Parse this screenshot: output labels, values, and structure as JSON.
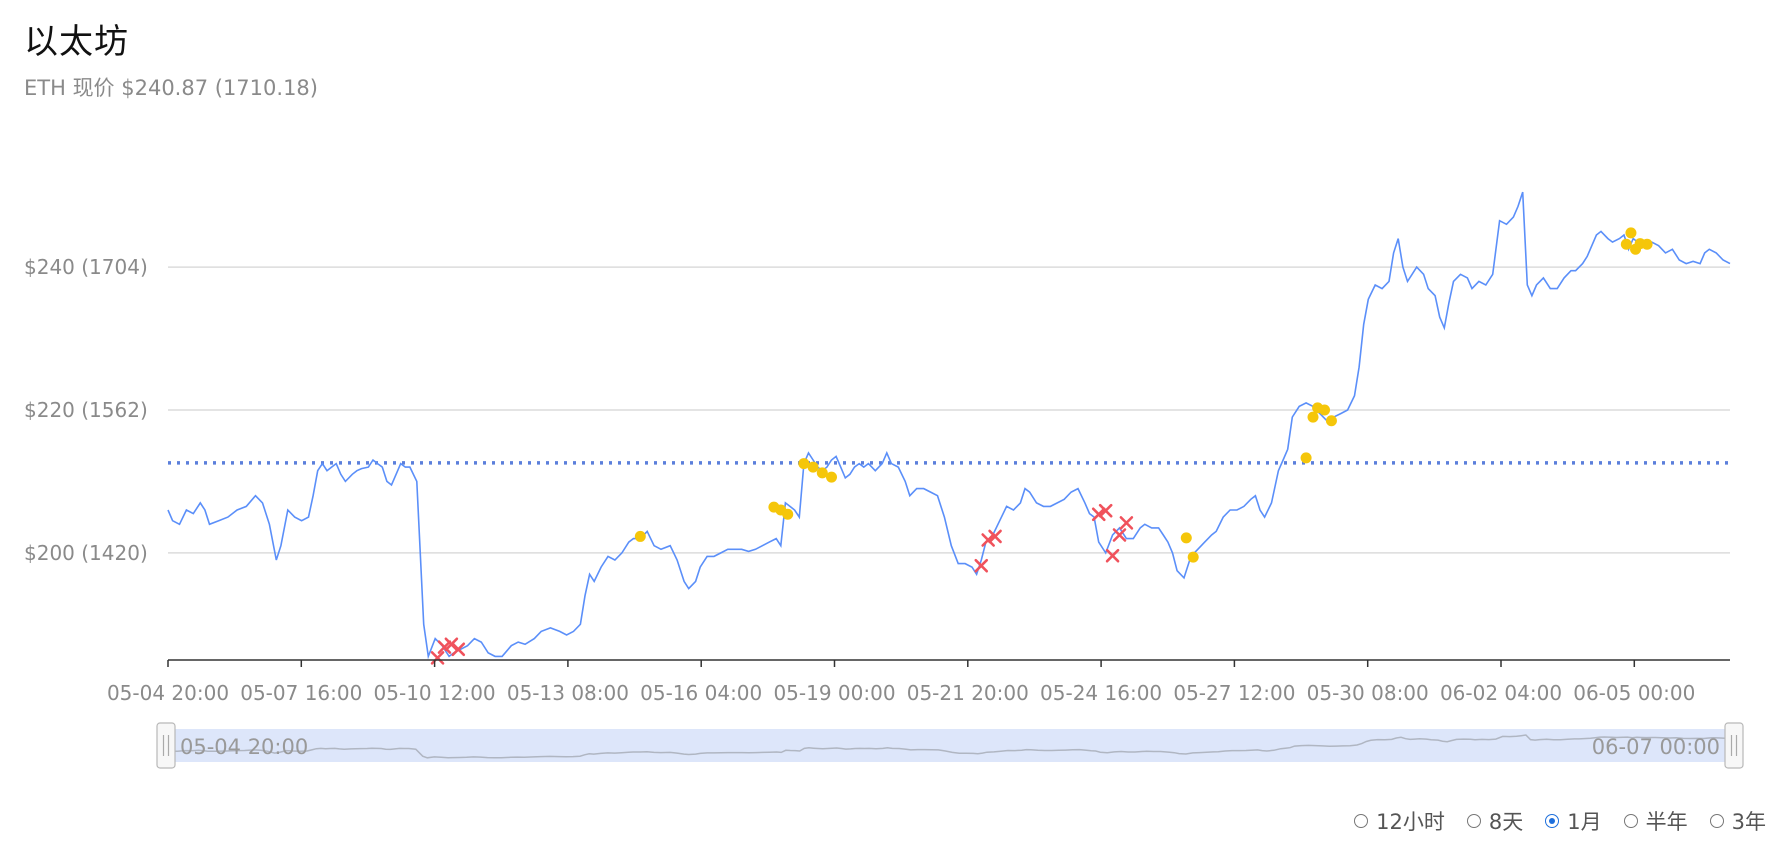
{
  "header": {
    "title": "以太坊",
    "subtitle": "ETH 现价 $240.87 (1710.18)"
  },
  "colors": {
    "line": "#5b8ff9",
    "reference": "#5b7fdb",
    "buy": "#f5c60a",
    "sell": "#f0525c",
    "grid": "#dcdcdc",
    "slider_fill": "#dde6fa"
  },
  "range_selector": {
    "options": [
      "12小时",
      "8天",
      "1月",
      "半年",
      "3年"
    ],
    "selected": "1月"
  },
  "slider": {
    "start_label": "05-04 20:00",
    "end_label": "06-07 00:00"
  },
  "chart_data": {
    "type": "line",
    "title": "",
    "xlabel": "",
    "ylabel": "",
    "x_unit": "days since 05-04 20:00",
    "ylim": [
      185,
      262
    ],
    "x_range": [
      0,
      33.9
    ],
    "y_ticks": [
      {
        "value": 200,
        "label": "$200 (1420)"
      },
      {
        "value": 220,
        "label": "$220 (1562)"
      },
      {
        "value": 240,
        "label": "$240 (1704)"
      }
    ],
    "x_ticks": [
      "05-04 20:00",
      "05-07 16:00",
      "05-10 12:00",
      "05-13 08:00",
      "05-16 04:00",
      "05-19 00:00",
      "05-21 20:00",
      "05-24 16:00",
      "05-27 12:00",
      "05-30 08:00",
      "06-02 04:00",
      "06-05 00:00"
    ],
    "reference_line": 212.6,
    "series": [
      {
        "points": [
          [
            0,
            206
          ],
          [
            0.1,
            204.5
          ],
          [
            0.25,
            204
          ],
          [
            0.4,
            206
          ],
          [
            0.55,
            205.5
          ],
          [
            0.7,
            207
          ],
          [
            0.8,
            206
          ],
          [
            0.9,
            204
          ],
          [
            1.1,
            204.5
          ],
          [
            1.3,
            205
          ],
          [
            1.5,
            206
          ],
          [
            1.7,
            206.5
          ],
          [
            1.9,
            208
          ],
          [
            2.05,
            207
          ],
          [
            2.2,
            204
          ],
          [
            2.35,
            199
          ],
          [
            2.45,
            201
          ],
          [
            2.6,
            206
          ],
          [
            2.75,
            205
          ],
          [
            2.9,
            204.5
          ],
          [
            3.05,
            205
          ],
          [
            3.15,
            208
          ],
          [
            3.25,
            211.5
          ],
          [
            3.35,
            212.5
          ],
          [
            3.45,
            211.5
          ],
          [
            3.55,
            212
          ],
          [
            3.65,
            212.5
          ],
          [
            3.75,
            211
          ],
          [
            3.85,
            210
          ],
          [
            4.0,
            211
          ],
          [
            4.1,
            211.5
          ],
          [
            4.2,
            211.8
          ],
          [
            4.35,
            212
          ],
          [
            4.45,
            213
          ],
          [
            4.55,
            212.5
          ],
          [
            4.65,
            212
          ],
          [
            4.75,
            210
          ],
          [
            4.85,
            209.5
          ],
          [
            4.95,
            211
          ],
          [
            5.05,
            212.5
          ],
          [
            5.15,
            212
          ],
          [
            5.25,
            212
          ],
          [
            5.4,
            210
          ],
          [
            5.55,
            190
          ],
          [
            5.65,
            185.5
          ],
          [
            5.8,
            188
          ],
          [
            5.95,
            187
          ],
          [
            6.1,
            185.5
          ],
          [
            6.2,
            186
          ],
          [
            6.35,
            186.5
          ],
          [
            6.5,
            187
          ],
          [
            6.65,
            188
          ],
          [
            6.8,
            187.5
          ],
          [
            6.95,
            186
          ],
          [
            7.1,
            185.5
          ],
          [
            7.25,
            185.5
          ],
          [
            7.45,
            187
          ],
          [
            7.6,
            187.5
          ],
          [
            7.75,
            187.2
          ],
          [
            7.95,
            188
          ],
          [
            8.1,
            189
          ],
          [
            8.3,
            189.5
          ],
          [
            8.5,
            189
          ],
          [
            8.65,
            188.5
          ],
          [
            8.8,
            189
          ],
          [
            8.95,
            190
          ],
          [
            9.05,
            194
          ],
          [
            9.15,
            197
          ],
          [
            9.25,
            196
          ],
          [
            9.4,
            198
          ],
          [
            9.55,
            199.5
          ],
          [
            9.7,
            199
          ],
          [
            9.85,
            200
          ],
          [
            10.0,
            201.5
          ],
          [
            10.1,
            202
          ],
          [
            10.25,
            202
          ],
          [
            10.4,
            203
          ],
          [
            10.55,
            201
          ],
          [
            10.7,
            200.5
          ],
          [
            10.9,
            201
          ],
          [
            11.05,
            199
          ],
          [
            11.2,
            196
          ],
          [
            11.3,
            195
          ],
          [
            11.45,
            196
          ],
          [
            11.55,
            198
          ],
          [
            11.7,
            199.5
          ],
          [
            11.85,
            199.5
          ],
          [
            12.0,
            200
          ],
          [
            12.15,
            200.5
          ],
          [
            12.3,
            200.5
          ],
          [
            12.45,
            200.5
          ],
          [
            12.6,
            200.2
          ],
          [
            12.75,
            200.5
          ],
          [
            12.9,
            201
          ],
          [
            13.05,
            201.5
          ],
          [
            13.2,
            202
          ],
          [
            13.3,
            201
          ],
          [
            13.4,
            207
          ],
          [
            13.5,
            206.5
          ],
          [
            13.6,
            206
          ],
          [
            13.7,
            205
          ],
          [
            13.8,
            212.5
          ],
          [
            13.9,
            214
          ],
          [
            14.0,
            213
          ],
          [
            14.1,
            212
          ],
          [
            14.2,
            211.5
          ],
          [
            14.3,
            212
          ],
          [
            14.4,
            213
          ],
          [
            14.5,
            213.5
          ],
          [
            14.6,
            212
          ],
          [
            14.7,
            210.5
          ],
          [
            14.8,
            211
          ],
          [
            14.9,
            212
          ],
          [
            15.0,
            212.5
          ],
          [
            15.1,
            212
          ],
          [
            15.2,
            212.5
          ],
          [
            15.35,
            211.5
          ],
          [
            15.5,
            212.5
          ],
          [
            15.6,
            214
          ],
          [
            15.7,
            212.5
          ],
          [
            15.85,
            212
          ],
          [
            16.0,
            210
          ],
          [
            16.1,
            208
          ],
          [
            16.25,
            209
          ],
          [
            16.4,
            209
          ],
          [
            16.55,
            208.5
          ],
          [
            16.7,
            208
          ],
          [
            16.85,
            205
          ],
          [
            17.0,
            201
          ],
          [
            17.15,
            198.5
          ],
          [
            17.3,
            198.5
          ],
          [
            17.45,
            198
          ],
          [
            17.55,
            197
          ],
          [
            17.65,
            199
          ],
          [
            17.75,
            201.5
          ],
          [
            17.9,
            202.5
          ],
          [
            18.05,
            204.5
          ],
          [
            18.2,
            206.5
          ],
          [
            18.35,
            206
          ],
          [
            18.5,
            207
          ],
          [
            18.6,
            209
          ],
          [
            18.7,
            208.5
          ],
          [
            18.85,
            207
          ],
          [
            19.0,
            206.5
          ],
          [
            19.15,
            206.5
          ],
          [
            19.3,
            207
          ],
          [
            19.45,
            207.5
          ],
          [
            19.6,
            208.5
          ],
          [
            19.75,
            209
          ],
          [
            19.9,
            207
          ],
          [
            20.0,
            205.5
          ],
          [
            20.1,
            205
          ],
          [
            20.2,
            201.5
          ],
          [
            20.35,
            200
          ],
          [
            20.5,
            202.5
          ],
          [
            20.65,
            203.5
          ],
          [
            20.8,
            202
          ],
          [
            20.95,
            202
          ],
          [
            21.1,
            203.5
          ],
          [
            21.2,
            204
          ],
          [
            21.35,
            203.5
          ],
          [
            21.5,
            203.5
          ],
          [
            21.6,
            202.5
          ],
          [
            21.7,
            201.5
          ],
          [
            21.8,
            200
          ],
          [
            21.9,
            197.5
          ],
          [
            22.05,
            196.5
          ],
          [
            22.2,
            199.5
          ],
          [
            22.35,
            200.5
          ],
          [
            22.5,
            201.5
          ],
          [
            22.65,
            202.5
          ],
          [
            22.75,
            203
          ],
          [
            22.9,
            205
          ],
          [
            23.05,
            206
          ],
          [
            23.2,
            206
          ],
          [
            23.35,
            206.5
          ],
          [
            23.5,
            207.5
          ],
          [
            23.6,
            208
          ],
          [
            23.7,
            206
          ],
          [
            23.8,
            205
          ],
          [
            23.95,
            207
          ],
          [
            24.1,
            211.5
          ],
          [
            24.2,
            213
          ],
          [
            24.3,
            214.5
          ],
          [
            24.4,
            219
          ],
          [
            24.55,
            220.5
          ],
          [
            24.7,
            221
          ],
          [
            24.85,
            220.5
          ],
          [
            25.0,
            219.5
          ],
          [
            25.15,
            218.5
          ],
          [
            25.3,
            219
          ],
          [
            25.45,
            219.5
          ],
          [
            25.6,
            220
          ],
          [
            25.75,
            222
          ],
          [
            25.85,
            226
          ],
          [
            25.95,
            232
          ],
          [
            26.05,
            235.5
          ],
          [
            26.2,
            237.5
          ],
          [
            26.35,
            237
          ],
          [
            26.5,
            238
          ],
          [
            26.6,
            242
          ],
          [
            26.7,
            244
          ],
          [
            26.8,
            240
          ],
          [
            26.9,
            238
          ],
          [
            27.0,
            239
          ],
          [
            27.1,
            240
          ],
          [
            27.25,
            239
          ],
          [
            27.35,
            237
          ],
          [
            27.5,
            236
          ],
          [
            27.6,
            233
          ],
          [
            27.7,
            231.5
          ],
          [
            27.8,
            235
          ],
          [
            27.9,
            238
          ],
          [
            28.05,
            239
          ],
          [
            28.2,
            238.5
          ],
          [
            28.3,
            237
          ],
          [
            28.45,
            238
          ],
          [
            28.6,
            237.5
          ],
          [
            28.75,
            239
          ],
          [
            28.9,
            246.5
          ],
          [
            29.05,
            246
          ],
          [
            29.2,
            247
          ],
          [
            29.3,
            248.5
          ],
          [
            29.4,
            250.5
          ],
          [
            29.5,
            237.5
          ],
          [
            29.6,
            236
          ],
          [
            29.7,
            237.5
          ],
          [
            29.85,
            238.5
          ],
          [
            30.0,
            237
          ],
          [
            30.15,
            237
          ],
          [
            30.3,
            238.5
          ],
          [
            30.45,
            239.5
          ],
          [
            30.55,
            239.5
          ],
          [
            30.7,
            240.5
          ],
          [
            30.8,
            241.5
          ],
          [
            30.9,
            243
          ],
          [
            31.0,
            244.5
          ],
          [
            31.1,
            245
          ],
          [
            31.25,
            244
          ],
          [
            31.35,
            243.5
          ],
          [
            31.5,
            244
          ],
          [
            31.6,
            244.5
          ],
          [
            31.7,
            242.5
          ],
          [
            31.8,
            244
          ],
          [
            31.9,
            243.5
          ],
          [
            32.0,
            243.2
          ],
          [
            32.2,
            243.5
          ],
          [
            32.35,
            243
          ],
          [
            32.5,
            242
          ],
          [
            32.65,
            242.5
          ],
          [
            32.8,
            241
          ],
          [
            32.95,
            240.5
          ],
          [
            33.1,
            240.8
          ],
          [
            33.25,
            240.5
          ],
          [
            33.35,
            242
          ],
          [
            33.45,
            242.5
          ],
          [
            33.6,
            242
          ],
          [
            33.75,
            241
          ],
          [
            33.9,
            240.5
          ]
        ]
      }
    ],
    "buy_markers": [
      [
        10.25,
        202.3
      ],
      [
        13.15,
        206.4
      ],
      [
        13.3,
        206
      ],
      [
        13.45,
        205.4
      ],
      [
        13.8,
        212.5
      ],
      [
        14.0,
        212
      ],
      [
        14.2,
        211.2
      ],
      [
        14.4,
        210.6
      ],
      [
        22.1,
        202.1
      ],
      [
        22.25,
        199.4
      ],
      [
        24.7,
        213.3
      ],
      [
        24.85,
        219
      ],
      [
        24.95,
        220.3
      ],
      [
        25.1,
        220
      ],
      [
        25.25,
        218.5
      ],
      [
        31.65,
        243.2
      ],
      [
        31.75,
        244.8
      ],
      [
        31.85,
        242.5
      ],
      [
        31.95,
        243.3
      ],
      [
        32.1,
        243.2
      ]
    ],
    "sell_markers": [
      [
        5.85,
        185.3
      ],
      [
        6.0,
        186.8
      ],
      [
        6.15,
        187.2
      ],
      [
        6.3,
        186.5
      ],
      [
        17.65,
        198.2
      ],
      [
        17.8,
        201.8
      ],
      [
        17.95,
        202.3
      ],
      [
        20.2,
        205.4
      ],
      [
        20.35,
        205.9
      ],
      [
        20.5,
        199.6
      ],
      [
        20.65,
        202.5
      ],
      [
        20.8,
        204.2
      ]
    ]
  }
}
